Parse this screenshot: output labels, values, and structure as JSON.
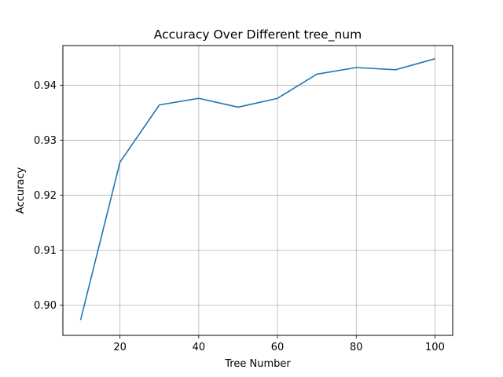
{
  "chart_data": {
    "type": "line",
    "title": "Accuracy Over Different tree_num",
    "xlabel": "Tree Number",
    "ylabel": "Accuracy",
    "xlim": [
      5.5,
      104.5
    ],
    "ylim": [
      0.8945,
      0.9472
    ],
    "x_ticks": [
      20,
      40,
      60,
      80,
      100
    ],
    "x_tick_labels": [
      "20",
      "40",
      "60",
      "80",
      "100"
    ],
    "y_ticks": [
      0.9,
      0.91,
      0.92,
      0.93,
      0.94
    ],
    "y_tick_labels": [
      "0.90",
      "0.91",
      "0.92",
      "0.93",
      "0.94"
    ],
    "grid": true,
    "series": [
      {
        "color": "#1f77b4",
        "x": [
          10,
          20,
          30,
          40,
          50,
          60,
          70,
          80,
          90,
          100
        ],
        "y": [
          0.8973,
          0.926,
          0.9364,
          0.9376,
          0.936,
          0.9376,
          0.942,
          0.9432,
          0.9428,
          0.9448
        ]
      }
    ]
  }
}
